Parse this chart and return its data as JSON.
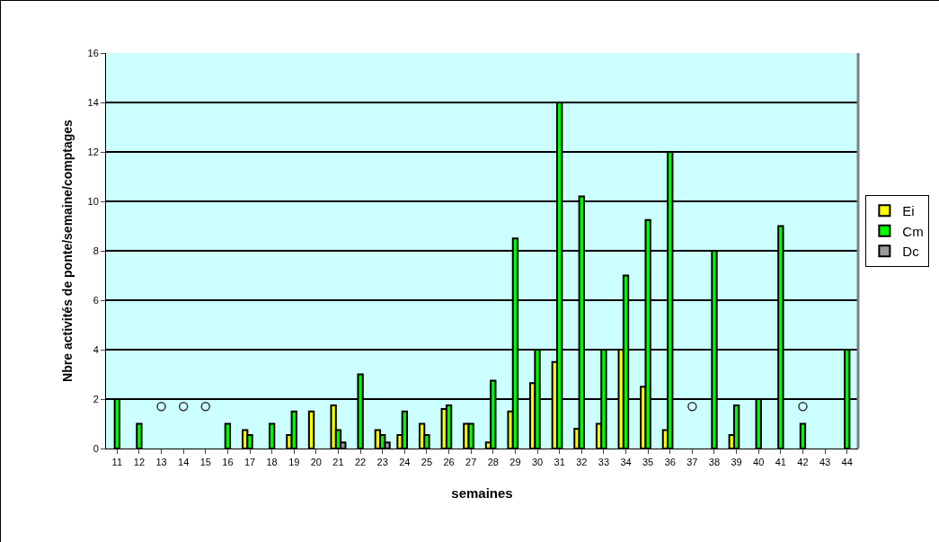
{
  "chart_data": {
    "type": "bar",
    "xlabel": "semaines",
    "ylabel": "Nbre activités de ponte/semaine/comptages",
    "categories": [
      "11",
      "12",
      "13",
      "14",
      "15",
      "16",
      "17",
      "18",
      "19",
      "20",
      "21",
      "22",
      "23",
      "24",
      "25",
      "26",
      "27",
      "28",
      "29",
      "30",
      "31",
      "32",
      "33",
      "34",
      "35",
      "36",
      "37",
      "38",
      "39",
      "40",
      "41",
      "42",
      "43",
      "44"
    ],
    "series": [
      {
        "name": "Ei",
        "color": "#ffff00",
        "values": [
          null,
          null,
          null,
          null,
          null,
          null,
          0.75,
          null,
          0.55,
          1.5,
          1.75,
          null,
          0.75,
          0.55,
          1,
          1.6,
          1,
          0.25,
          1.5,
          2.65,
          3.5,
          0.8,
          1,
          4,
          2.5,
          0.75,
          null,
          null,
          0.55,
          null,
          null,
          null,
          null,
          null
        ]
      },
      {
        "name": "Cm",
        "color": "#00ff00",
        "values": [
          2,
          1,
          null,
          null,
          null,
          1,
          0.55,
          1,
          1.5,
          null,
          0.75,
          3,
          0.55,
          1.5,
          0.55,
          1.75,
          1,
          2.75,
          8.5,
          4,
          14,
          10.2,
          4,
          7,
          9.25,
          12,
          null,
          8,
          1.75,
          2,
          9,
          1,
          null,
          4
        ]
      },
      {
        "name": "Dc",
        "color": "#999999",
        "values": [
          null,
          null,
          null,
          null,
          null,
          null,
          null,
          null,
          null,
          null,
          0.25,
          null,
          0.25,
          null,
          null,
          null,
          null,
          null,
          null,
          null,
          null,
          null,
          null,
          null,
          null,
          null,
          null,
          null,
          null,
          null,
          null,
          null,
          null,
          null
        ]
      },
      {
        "type": "scatter",
        "marker": "circle",
        "color": "#333333",
        "values": [
          null,
          null,
          1.7,
          1.7,
          1.7,
          null,
          null,
          null,
          null,
          null,
          null,
          null,
          null,
          null,
          null,
          null,
          null,
          null,
          null,
          null,
          null,
          null,
          null,
          null,
          null,
          null,
          1.7,
          null,
          null,
          null,
          null,
          1.7,
          null,
          null
        ]
      }
    ],
    "ylim": [
      0,
      16
    ],
    "yticks": [
      0,
      2,
      4,
      6,
      8,
      10,
      12,
      14,
      16
    ],
    "grid": "y",
    "legend": "right"
  }
}
